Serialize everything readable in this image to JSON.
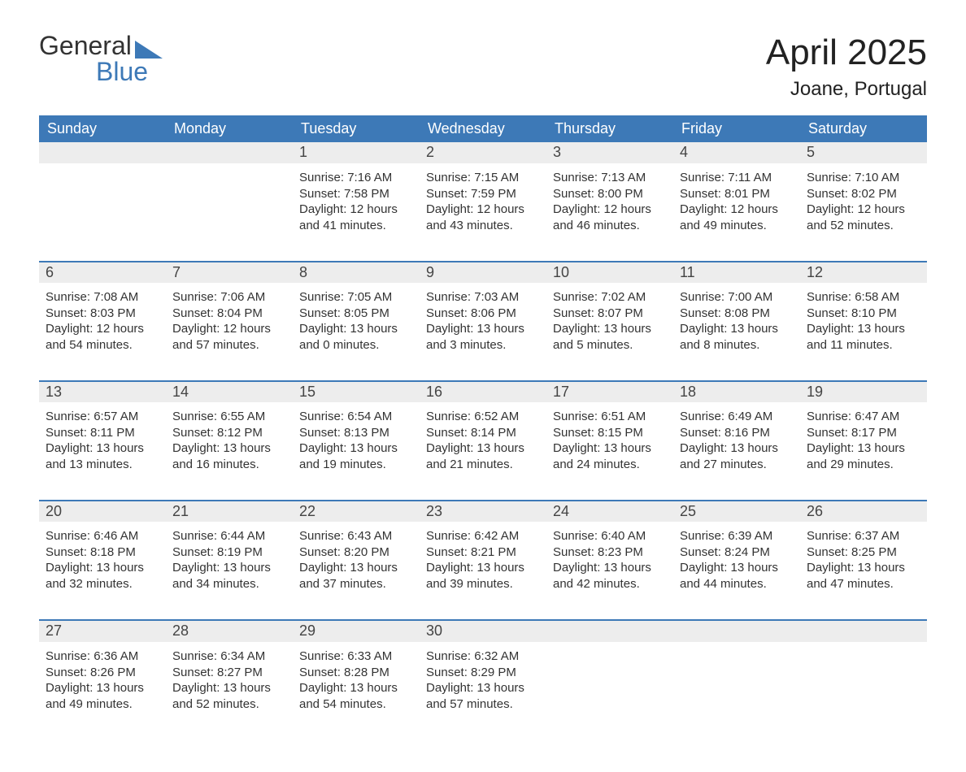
{
  "logo": {
    "word1": "General",
    "word2": "Blue"
  },
  "title": "April 2025",
  "location": "Joane, Portugal",
  "colors": {
    "header_bg": "#3d79b7",
    "header_text": "#ffffff",
    "daynum_bg": "#ededed",
    "border": "#3d79b7",
    "text": "#333333",
    "logo_blue": "#3d79b7"
  },
  "day_headers": [
    "Sunday",
    "Monday",
    "Tuesday",
    "Wednesday",
    "Thursday",
    "Friday",
    "Saturday"
  ],
  "weeks": [
    [
      null,
      null,
      {
        "n": "1",
        "sunrise": "Sunrise: 7:16 AM",
        "sunset": "Sunset: 7:58 PM",
        "daylight": "Daylight: 12 hours and 41 minutes."
      },
      {
        "n": "2",
        "sunrise": "Sunrise: 7:15 AM",
        "sunset": "Sunset: 7:59 PM",
        "daylight": "Daylight: 12 hours and 43 minutes."
      },
      {
        "n": "3",
        "sunrise": "Sunrise: 7:13 AM",
        "sunset": "Sunset: 8:00 PM",
        "daylight": "Daylight: 12 hours and 46 minutes."
      },
      {
        "n": "4",
        "sunrise": "Sunrise: 7:11 AM",
        "sunset": "Sunset: 8:01 PM",
        "daylight": "Daylight: 12 hours and 49 minutes."
      },
      {
        "n": "5",
        "sunrise": "Sunrise: 7:10 AM",
        "sunset": "Sunset: 8:02 PM",
        "daylight": "Daylight: 12 hours and 52 minutes."
      }
    ],
    [
      {
        "n": "6",
        "sunrise": "Sunrise: 7:08 AM",
        "sunset": "Sunset: 8:03 PM",
        "daylight": "Daylight: 12 hours and 54 minutes."
      },
      {
        "n": "7",
        "sunrise": "Sunrise: 7:06 AM",
        "sunset": "Sunset: 8:04 PM",
        "daylight": "Daylight: 12 hours and 57 minutes."
      },
      {
        "n": "8",
        "sunrise": "Sunrise: 7:05 AM",
        "sunset": "Sunset: 8:05 PM",
        "daylight": "Daylight: 13 hours and 0 minutes."
      },
      {
        "n": "9",
        "sunrise": "Sunrise: 7:03 AM",
        "sunset": "Sunset: 8:06 PM",
        "daylight": "Daylight: 13 hours and 3 minutes."
      },
      {
        "n": "10",
        "sunrise": "Sunrise: 7:02 AM",
        "sunset": "Sunset: 8:07 PM",
        "daylight": "Daylight: 13 hours and 5 minutes."
      },
      {
        "n": "11",
        "sunrise": "Sunrise: 7:00 AM",
        "sunset": "Sunset: 8:08 PM",
        "daylight": "Daylight: 13 hours and 8 minutes."
      },
      {
        "n": "12",
        "sunrise": "Sunrise: 6:58 AM",
        "sunset": "Sunset: 8:10 PM",
        "daylight": "Daylight: 13 hours and 11 minutes."
      }
    ],
    [
      {
        "n": "13",
        "sunrise": "Sunrise: 6:57 AM",
        "sunset": "Sunset: 8:11 PM",
        "daylight": "Daylight: 13 hours and 13 minutes."
      },
      {
        "n": "14",
        "sunrise": "Sunrise: 6:55 AM",
        "sunset": "Sunset: 8:12 PM",
        "daylight": "Daylight: 13 hours and 16 minutes."
      },
      {
        "n": "15",
        "sunrise": "Sunrise: 6:54 AM",
        "sunset": "Sunset: 8:13 PM",
        "daylight": "Daylight: 13 hours and 19 minutes."
      },
      {
        "n": "16",
        "sunrise": "Sunrise: 6:52 AM",
        "sunset": "Sunset: 8:14 PM",
        "daylight": "Daylight: 13 hours and 21 minutes."
      },
      {
        "n": "17",
        "sunrise": "Sunrise: 6:51 AM",
        "sunset": "Sunset: 8:15 PM",
        "daylight": "Daylight: 13 hours and 24 minutes."
      },
      {
        "n": "18",
        "sunrise": "Sunrise: 6:49 AM",
        "sunset": "Sunset: 8:16 PM",
        "daylight": "Daylight: 13 hours and 27 minutes."
      },
      {
        "n": "19",
        "sunrise": "Sunrise: 6:47 AM",
        "sunset": "Sunset: 8:17 PM",
        "daylight": "Daylight: 13 hours and 29 minutes."
      }
    ],
    [
      {
        "n": "20",
        "sunrise": "Sunrise: 6:46 AM",
        "sunset": "Sunset: 8:18 PM",
        "daylight": "Daylight: 13 hours and 32 minutes."
      },
      {
        "n": "21",
        "sunrise": "Sunrise: 6:44 AM",
        "sunset": "Sunset: 8:19 PM",
        "daylight": "Daylight: 13 hours and 34 minutes."
      },
      {
        "n": "22",
        "sunrise": "Sunrise: 6:43 AM",
        "sunset": "Sunset: 8:20 PM",
        "daylight": "Daylight: 13 hours and 37 minutes."
      },
      {
        "n": "23",
        "sunrise": "Sunrise: 6:42 AM",
        "sunset": "Sunset: 8:21 PM",
        "daylight": "Daylight: 13 hours and 39 minutes."
      },
      {
        "n": "24",
        "sunrise": "Sunrise: 6:40 AM",
        "sunset": "Sunset: 8:23 PM",
        "daylight": "Daylight: 13 hours and 42 minutes."
      },
      {
        "n": "25",
        "sunrise": "Sunrise: 6:39 AM",
        "sunset": "Sunset: 8:24 PM",
        "daylight": "Daylight: 13 hours and 44 minutes."
      },
      {
        "n": "26",
        "sunrise": "Sunrise: 6:37 AM",
        "sunset": "Sunset: 8:25 PM",
        "daylight": "Daylight: 13 hours and 47 minutes."
      }
    ],
    [
      {
        "n": "27",
        "sunrise": "Sunrise: 6:36 AM",
        "sunset": "Sunset: 8:26 PM",
        "daylight": "Daylight: 13 hours and 49 minutes."
      },
      {
        "n": "28",
        "sunrise": "Sunrise: 6:34 AM",
        "sunset": "Sunset: 8:27 PM",
        "daylight": "Daylight: 13 hours and 52 minutes."
      },
      {
        "n": "29",
        "sunrise": "Sunrise: 6:33 AM",
        "sunset": "Sunset: 8:28 PM",
        "daylight": "Daylight: 13 hours and 54 minutes."
      },
      {
        "n": "30",
        "sunrise": "Sunrise: 6:32 AM",
        "sunset": "Sunset: 8:29 PM",
        "daylight": "Daylight: 13 hours and 57 minutes."
      },
      null,
      null,
      null
    ]
  ]
}
